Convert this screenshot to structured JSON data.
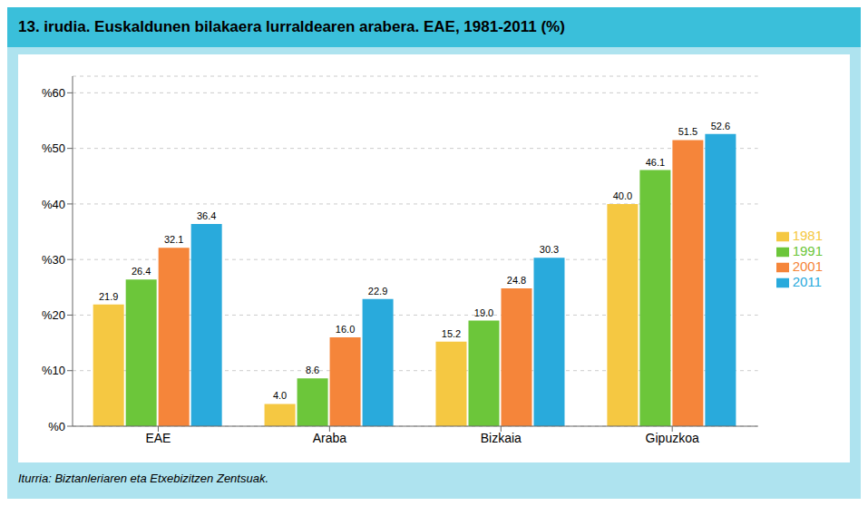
{
  "chart_data": {
    "type": "bar",
    "title": "13. irudia. Euskaldunen bilakaera lurraldearen arabera. EAE, 1981-2011 (%)",
    "annotations": [
      "Iturria: Biztanleriaren eta Etxebizitzen Zentsuak."
    ],
    "categories": [
      "EAE",
      "Araba",
      "Bizkaia",
      "Gipuzkoa"
    ],
    "series": [
      {
        "name": "1981",
        "color": "#F5C842",
        "values": [
          21.9,
          4.0,
          15.2,
          40.0
        ],
        "value_labels": [
          "21.9",
          "4.0",
          "15.2",
          "40.0"
        ]
      },
      {
        "name": "1991",
        "color": "#6CC63A",
        "values": [
          26.4,
          8.6,
          19.0,
          46.1
        ],
        "value_labels": [
          "26.4",
          "8.6",
          "19.0",
          "46.1"
        ]
      },
      {
        "name": "2001",
        "color": "#F5853A",
        "values": [
          32.1,
          16.0,
          24.8,
          51.5
        ],
        "value_labels": [
          "32.1",
          "16.0",
          "24.8",
          "51.5"
        ]
      },
      {
        "name": "2011",
        "color": "#29AADC",
        "values": [
          36.4,
          22.9,
          30.3,
          52.6
        ],
        "value_labels": [
          "36.4",
          "22.9",
          "30.3",
          "52.6"
        ]
      }
    ],
    "ylim": [
      0,
      63
    ],
    "yticks": [
      {
        "value": 0,
        "label": "%0"
      },
      {
        "value": 10,
        "label": "%10"
      },
      {
        "value": 20,
        "label": "%20"
      },
      {
        "value": 30,
        "label": "%30"
      },
      {
        "value": 40,
        "label": "%40"
      },
      {
        "value": 50,
        "label": "%50"
      },
      {
        "value": 60,
        "label": "%60"
      }
    ],
    "grid": true,
    "legend": "right",
    "data_labels": true
  }
}
